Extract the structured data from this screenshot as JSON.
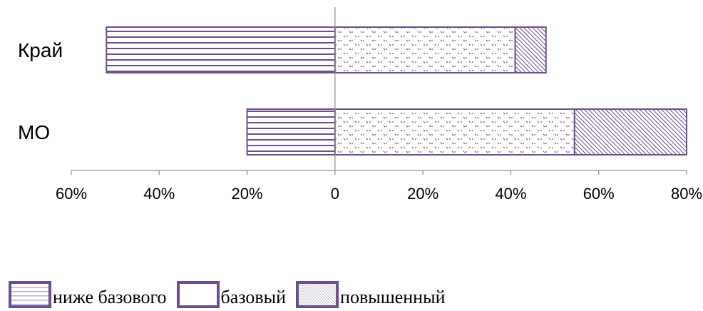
{
  "chart_data": {
    "type": "bar",
    "orientation": "horizontal",
    "stacked": true,
    "categories": [
      "Край",
      "МО"
    ],
    "series": [
      {
        "name": "ниже базового",
        "values": [
          -52,
          -20
        ],
        "pattern": "horizontal-lines"
      },
      {
        "name": "базовый",
        "values": [
          41,
          54.5
        ],
        "pattern": "dots"
      },
      {
        "name": "повышенный",
        "values": [
          7,
          25.5
        ],
        "pattern": "diagonal-lines"
      }
    ],
    "x_ticks": [
      -60,
      -40,
      -20,
      0,
      20,
      40,
      60,
      80
    ],
    "x_tick_labels": [
      "60%",
      "40%",
      "20%",
      "0",
      "20%",
      "40%",
      "60%",
      "80%"
    ],
    "xlim": [
      -60,
      80
    ],
    "grid": false,
    "legend_position": "bottom-left",
    "colors": {
      "border": "#6b4f8a",
      "axis": "#8c8c8c"
    }
  }
}
